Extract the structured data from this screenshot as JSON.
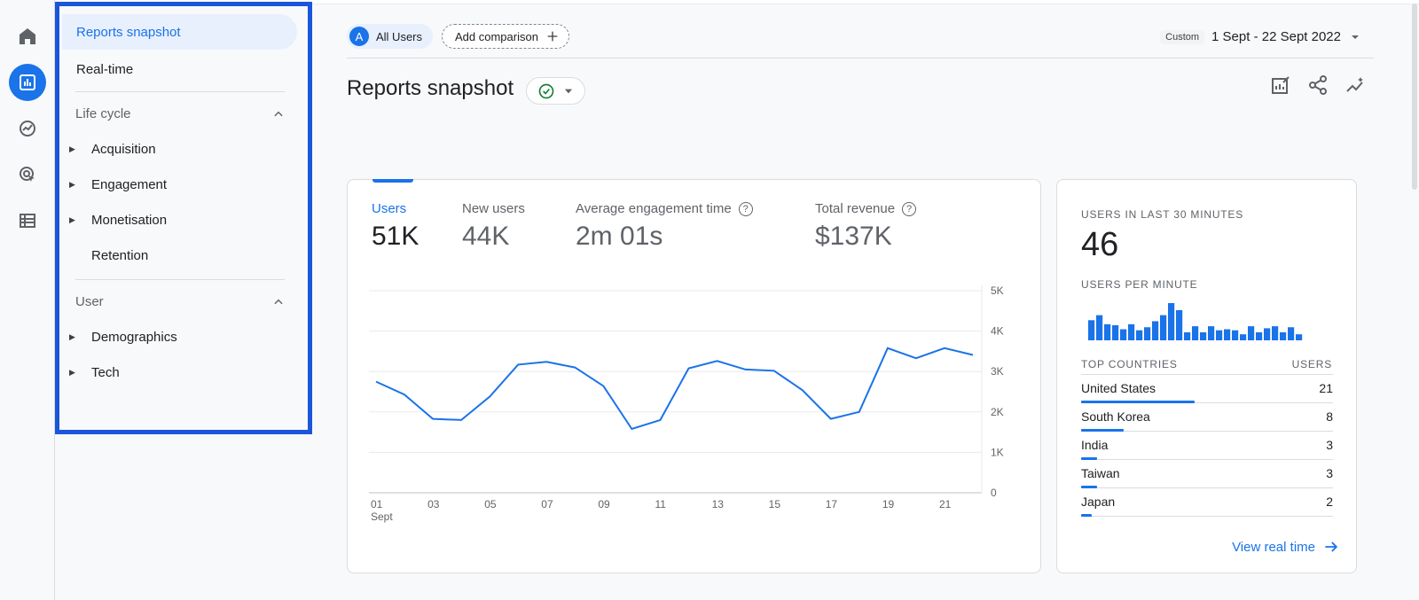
{
  "rail": {
    "icons": [
      "home-icon",
      "reports-icon",
      "explore-icon",
      "advertising-icon",
      "configure-icon"
    ]
  },
  "sidenav": {
    "selected": "Reports snapshot",
    "realtime": "Real-time",
    "group1": "Life cycle",
    "lifecycle_items": [
      "Acquisition",
      "Engagement",
      "Monetisation",
      "Retention"
    ],
    "group2": "User",
    "user_items": [
      "Demographics",
      "Tech"
    ]
  },
  "topbar": {
    "avatar_letter": "A",
    "segment": "All Users",
    "add_comparison": "Add comparison",
    "custom_tag": "Custom",
    "date_range": "1 Sept - 22 Sept 2022"
  },
  "page": {
    "title": "Reports snapshot"
  },
  "metrics": [
    {
      "label": "Users",
      "value": "51K",
      "help": false
    },
    {
      "label": "New users",
      "value": "44K",
      "help": false
    },
    {
      "label": "Average engagement time",
      "value": "2m 01s",
      "help": true
    },
    {
      "label": "Total revenue",
      "value": "$137K",
      "help": true
    }
  ],
  "colors": {
    "accent": "#1a73e8",
    "highlight_border": "#1a56db"
  },
  "chart_data": {
    "type": "line",
    "x": [
      "01",
      "02",
      "03",
      "04",
      "05",
      "06",
      "07",
      "08",
      "09",
      "10",
      "11",
      "12",
      "13",
      "14",
      "15",
      "16",
      "17",
      "18",
      "19",
      "20",
      "21",
      "22"
    ],
    "x_tick_labels": [
      "01",
      "03",
      "05",
      "07",
      "09",
      "11",
      "13",
      "15",
      "17",
      "19",
      "21"
    ],
    "x_sublabel": "Sept",
    "series": [
      {
        "values": [
          2750,
          2430,
          1830,
          1800,
          2380,
          3170,
          3240,
          3100,
          2640,
          1580,
          1800,
          3080,
          3260,
          3050,
          3020,
          2540,
          1830,
          2000,
          3580,
          3330,
          3580,
          3410
        ]
      }
    ],
    "y_ticks": [
      "0",
      "1K",
      "2K",
      "3K",
      "4K",
      "5K"
    ],
    "ylim": [
      0,
      5000
    ],
    "grid": true,
    "y_axis_side": "right"
  },
  "realtime_card": {
    "label_users": "USERS IN LAST 30 MINUTES",
    "users": "46",
    "label_per_minute": "USERS PER MINUTE",
    "per_minute_values": [
      20,
      25,
      16,
      15,
      11,
      16,
      10,
      13,
      19,
      25,
      37,
      30,
      8,
      14,
      8,
      14,
      10,
      11,
      10,
      6,
      14,
      8,
      12,
      14,
      8,
      13,
      6
    ],
    "countries_header": "TOP COUNTRIES",
    "users_header": "USERS",
    "countries": [
      {
        "name": "United States",
        "value": "21",
        "share": 0.45
      },
      {
        "name": "South Korea",
        "value": "8",
        "share": 0.17
      },
      {
        "name": "India",
        "value": "3",
        "share": 0.065
      },
      {
        "name": "Taiwan",
        "value": "3",
        "share": 0.065
      },
      {
        "name": "Japan",
        "value": "2",
        "share": 0.043
      }
    ],
    "view_link": "View real time"
  }
}
